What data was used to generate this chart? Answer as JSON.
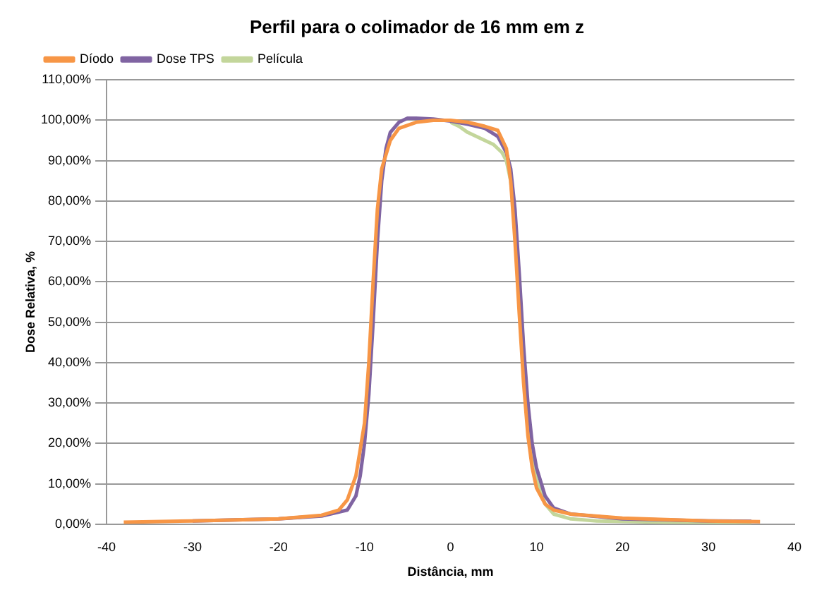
{
  "chart_data": {
    "type": "line",
    "title": "Perfil para o colimador de 16 mm em z",
    "xlabel": "Distância, mm",
    "ylabel": "Dose Relativa, %",
    "xlim": [
      -40,
      40
    ],
    "xticks": [
      -40,
      -30,
      -20,
      -10,
      0,
      10,
      20,
      30,
      40
    ],
    "ylim": [
      0,
      110
    ],
    "yticks": [
      {
        "value": 0,
        "label": "0,00%"
      },
      {
        "value": 10,
        "label": "10,00%"
      },
      {
        "value": 20,
        "label": "20,00%"
      },
      {
        "value": 30,
        "label": "30,00%"
      },
      {
        "value": 40,
        "label": "40,00%"
      },
      {
        "value": 50,
        "label": "50,00%"
      },
      {
        "value": 60,
        "label": "60,00%"
      },
      {
        "value": 70,
        "label": "70,00%"
      },
      {
        "value": 80,
        "label": "80,00%"
      },
      {
        "value": 90,
        "label": "90,00%"
      },
      {
        "value": 100,
        "label": "100,00%"
      },
      {
        "value": 110,
        "label": "110,00%"
      }
    ],
    "grid": "y",
    "legend": "top left",
    "marker": "none",
    "line_style": "solid",
    "series": [
      {
        "name": "Díodo",
        "color": "#f79646",
        "x": [
          -38,
          -30,
          -20,
          -15,
          -13,
          -12,
          -11,
          -10,
          -9.5,
          -9,
          -8.5,
          -8,
          -7,
          -6,
          -4,
          -2,
          0,
          2,
          4,
          5.5,
          6.5,
          7,
          7.5,
          8,
          8.5,
          9,
          9.5,
          10,
          11,
          12,
          14,
          20,
          30,
          36
        ],
        "values": [
          0.5,
          0.8,
          1.3,
          2.2,
          3.5,
          6,
          12,
          25,
          40,
          60,
          78,
          88,
          95,
          98,
          99.5,
          100,
          100,
          99.5,
          98.5,
          97.5,
          93,
          85,
          70,
          52,
          35,
          22,
          14,
          9,
          5,
          3.5,
          2.5,
          1.5,
          0.8,
          0.6
        ]
      },
      {
        "name": "Dose TPS",
        "color": "#8064a2",
        "x": [
          -30,
          -20,
          -15,
          -12,
          -11,
          -10.5,
          -10,
          -9.5,
          -9,
          -8.5,
          -8,
          -7.5,
          -7,
          -6,
          -5,
          -4,
          -2,
          0,
          2,
          4,
          5.5,
          6.5,
          7,
          7.5,
          8,
          8.5,
          9,
          9.5,
          10,
          11,
          12,
          14,
          20,
          30,
          35
        ],
        "values": [
          0.8,
          1.3,
          2,
          3.5,
          7,
          12,
          20,
          32,
          50,
          70,
          85,
          93,
          97,
          99.5,
          100.5,
          100.5,
          100.3,
          99.8,
          99,
          98,
          96,
          92,
          88,
          78,
          62,
          44,
          30,
          20,
          14,
          7,
          4,
          2.5,
          1.3,
          0.8,
          0.7
        ]
      },
      {
        "name": "Película",
        "color": "#c3d69b",
        "x": [
          0,
          1,
          2,
          3,
          4,
          5,
          6,
          6.5,
          7,
          7.5,
          8,
          8.5,
          9,
          9.5,
          10,
          11,
          12,
          14,
          17,
          25,
          35
        ],
        "values": [
          99.5,
          98.5,
          97,
          96,
          95,
          94,
          92,
          90,
          85,
          75,
          60,
          43,
          28,
          18,
          11,
          5,
          2.5,
          1.3,
          0.8,
          0.5,
          0.4
        ]
      }
    ]
  }
}
